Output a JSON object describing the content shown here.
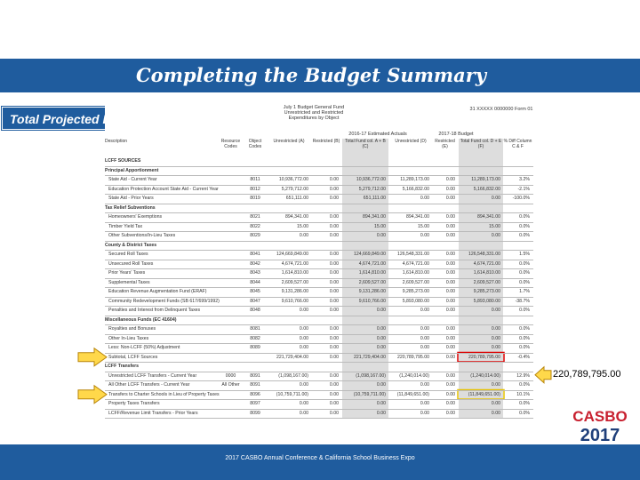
{
  "header": {
    "title": "Completing the Budget Summary",
    "label": "Total Projected LCFF Revenues"
  },
  "sheet": {
    "heading": "July 1 Budget General Fund Unrestricted and Restricted Expenditures by Object",
    "form_id": "31 XXXXX 0000000 Form 01",
    "group_current": "2016-17 Estimated Actuals",
    "group_budget": "2017-18 Budget",
    "columns": [
      "Description",
      "Resource Codes",
      "Object Codes",
      "Unrestricted (A)",
      "Restricted (B)",
      "Total Fund col. A + B (C)",
      "Unrestricted (D)",
      "Restricted (E)",
      "Total Fund col. D + E (F)",
      "% Diff Column C & F"
    ],
    "rows": [
      {
        "description": "LCFF SOURCES"
      },
      {
        "description": "Principal Apportionment"
      },
      {
        "description": "State Aid - Current Year",
        "object": "8011",
        "values": [
          "10,936,772.00",
          "0.00",
          "10,936,772.00",
          "11,289,173.00",
          "0.00",
          "11,289,173.00",
          "3.2%"
        ]
      },
      {
        "description": "Education Protection Account State Aid - Current Year",
        "object": "8012",
        "values": [
          "5,279,712.00",
          "0.00",
          "5,279,712.00",
          "5,166,832.00",
          "0.00",
          "5,166,832.00",
          "-2.1%"
        ]
      },
      {
        "description": "State Aid - Prior Years",
        "object": "8019",
        "values": [
          "651,111.00",
          "0.00",
          "651,111.00",
          "0.00",
          "0.00",
          "0.00",
          "-100.0%"
        ]
      },
      {
        "description": "Tax Relief Subventions"
      },
      {
        "description": "Homeowners' Exemptions",
        "object": "8021",
        "values": [
          "894,341.00",
          "0.00",
          "894,341.00",
          "894,341.00",
          "0.00",
          "894,341.00",
          "0.0%"
        ]
      },
      {
        "description": "Timber Yield Tax",
        "object": "8022",
        "values": [
          "15.00",
          "0.00",
          "15.00",
          "15.00",
          "0.00",
          "15.00",
          "0.0%"
        ]
      },
      {
        "description": "Other Subventions/In-Lieu Taxes",
        "object": "8029",
        "values": [
          "0.00",
          "0.00",
          "0.00",
          "0.00",
          "0.00",
          "0.00",
          "0.0%"
        ]
      },
      {
        "description": "County & District Taxes"
      },
      {
        "description": "Secured Roll Taxes",
        "object": "8041",
        "values": [
          "124,669,849.00",
          "0.00",
          "124,669,849.00",
          "126,548,331.00",
          "0.00",
          "126,548,331.00",
          "1.5%"
        ]
      },
      {
        "description": "Unsecured Roll Taxes",
        "object": "8042",
        "values": [
          "4,674,721.00",
          "0.00",
          "4,674,721.00",
          "4,674,721.00",
          "0.00",
          "4,674,721.00",
          "0.0%"
        ]
      },
      {
        "description": "Prior Years' Taxes",
        "object": "8043",
        "values": [
          "1,614,810.00",
          "0.00",
          "1,614,810.00",
          "1,614,810.00",
          "0.00",
          "1,614,810.00",
          "0.0%"
        ]
      },
      {
        "description": "Supplemental Taxes",
        "object": "8044",
        "values": [
          "2,609,527.00",
          "0.00",
          "2,609,527.00",
          "2,609,527.00",
          "0.00",
          "2,609,527.00",
          "0.0%"
        ]
      },
      {
        "description": "Education Revenue Augmentation Fund (ERAF)",
        "object": "8045",
        "values": [
          "9,131,286.00",
          "0.00",
          "9,131,286.00",
          "9,285,273.00",
          "0.00",
          "9,285,273.00",
          "1.7%"
        ]
      },
      {
        "description": "Community Redevelopment Funds (SB 617/699/1992)",
        "object": "8047",
        "values": [
          "9,610,766.00",
          "0.00",
          "9,610,766.00",
          "5,893,080.00",
          "0.00",
          "5,893,080.00",
          "-38.7%"
        ]
      },
      {
        "description": "Penalties and Interest from Delinquent Taxes",
        "object": "8048",
        "values": [
          "0.00",
          "0.00",
          "0.00",
          "0.00",
          "0.00",
          "0.00",
          "0.0%"
        ]
      },
      {
        "description": "Miscellaneous Funds (EC 41604)"
      },
      {
        "description": "Royalties and Bonuses",
        "object": "8081",
        "values": [
          "0.00",
          "0.00",
          "0.00",
          "0.00",
          "0.00",
          "0.00",
          "0.0%"
        ]
      },
      {
        "description": "Other In-Lieu Taxes",
        "object": "8082",
        "values": [
          "0.00",
          "0.00",
          "0.00",
          "0.00",
          "0.00",
          "0.00",
          "0.0%"
        ]
      },
      {
        "description": "Less: Non-LCFF (50%) Adjustment",
        "object": "8089",
        "values": [
          "0.00",
          "0.00",
          "0.00",
          "0.00",
          "0.00",
          "0.00",
          "0.0%"
        ]
      },
      {
        "description": "Subtotal, LCFF Sources",
        "values": [
          "221,729,404.00",
          "0.00",
          "221,729,404.00",
          "220,789,795.00",
          "0.00",
          "220,789,795.00",
          "-0.4%"
        ]
      },
      {
        "description": "LCFF Transfers"
      },
      {
        "description": "Unrestricted LCFF Transfers - Current Year",
        "resource": "0000",
        "object": "8091",
        "values": [
          "(1,098,167.00)",
          "0.00",
          "(1,098,167.00)",
          "(1,240,014.00)",
          "0.00",
          "(1,240,014.00)",
          "12.9%"
        ]
      },
      {
        "description": "All Other LCFF Transfers - Current Year",
        "resource": "All Other",
        "object": "8091",
        "values": [
          "0.00",
          "0.00",
          "0.00",
          "0.00",
          "0.00",
          "0.00",
          "0.0%"
        ]
      },
      {
        "description": "Transfers to Charter Schools in Lieu of Property Taxes",
        "object": "8096",
        "values": [
          "(10,759,711.00)",
          "0.00",
          "(10,759,711.00)",
          "(11,849,651.00)",
          "0.00",
          "(11,849,651.00)",
          "10.1%"
        ]
      },
      {
        "description": "Property Taxes Transfers",
        "object": "8097",
        "values": [
          "0.00",
          "0.00",
          "0.00",
          "0.00",
          "0.00",
          "0.00",
          "0.0%"
        ]
      },
      {
        "description": "LCFF/Revenue Limit Transfers - Prior Years",
        "object": "8099",
        "values": [
          "0.00",
          "0.00",
          "0.00",
          "0.00",
          "0.00",
          "0.00",
          "0.0%"
        ]
      }
    ]
  },
  "callout": "220,789,795.00",
  "logo": {
    "name": "CASBO",
    "year": "2017"
  },
  "footer": "2017 CASBO Annual Conference & California School Business Expo"
}
